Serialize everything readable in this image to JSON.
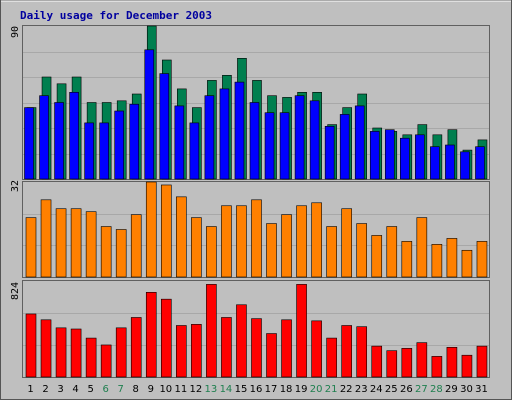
{
  "chart_data": [
    {
      "type": "bar",
      "title": "Daily usage for December 2003",
      "panel": "top",
      "y_max_label": "90",
      "ylim": [
        0,
        90
      ],
      "categories": [
        "1",
        "2",
        "3",
        "4",
        "5",
        "6",
        "7",
        "8",
        "9",
        "10",
        "11",
        "12",
        "13",
        "14",
        "15",
        "16",
        "17",
        "18",
        "19",
        "20",
        "21",
        "22",
        "23",
        "24",
        "25",
        "26",
        "27",
        "28",
        "29",
        "30",
        "31"
      ],
      "weekend_days": [
        "6",
        "7",
        "13",
        "14",
        "20",
        "21",
        "27",
        "28"
      ],
      "series": [
        {
          "color": "#007f4f",
          "values": [
            42,
            60,
            56,
            60,
            45,
            45,
            46,
            50,
            90,
            70,
            53,
            42,
            58,
            61,
            71,
            58,
            49,
            48,
            51,
            51,
            32,
            42,
            50,
            30,
            28,
            26,
            32,
            26,
            29,
            17,
            23
          ]
        },
        {
          "color": "#0000ff",
          "values": [
            42,
            49,
            45,
            51,
            33,
            33,
            40,
            44,
            76,
            62,
            43,
            33,
            49,
            53,
            57,
            45,
            39,
            39,
            49,
            46,
            31,
            38,
            43,
            28,
            29,
            24,
            26,
            19,
            20,
            16,
            19
          ]
        }
      ],
      "colors": {
        "grid": "#7f7f7f",
        "plot_bg": "#bfbfbf"
      }
    },
    {
      "type": "bar",
      "panel": "middle",
      "y_max_label": "32",
      "ylim": [
        0,
        32
      ],
      "categories": [
        "1",
        "2",
        "3",
        "4",
        "5",
        "6",
        "7",
        "8",
        "9",
        "10",
        "11",
        "12",
        "13",
        "14",
        "15",
        "16",
        "17",
        "18",
        "19",
        "20",
        "21",
        "22",
        "23",
        "24",
        "25",
        "26",
        "27",
        "28",
        "29",
        "30",
        "31"
      ],
      "series": [
        {
          "color": "#ff8000",
          "values": [
            20,
            26,
            23,
            23,
            22,
            17,
            16,
            21,
            32,
            31,
            27,
            20,
            17,
            24,
            24,
            26,
            18,
            21,
            24,
            25,
            17,
            23,
            18,
            14,
            17,
            12,
            20,
            11,
            13,
            9,
            12
          ]
        }
      ]
    },
    {
      "type": "bar",
      "panel": "bottom",
      "y_max_label": "824",
      "ylim": [
        0,
        824
      ],
      "categories": [
        "1",
        "2",
        "3",
        "4",
        "5",
        "6",
        "7",
        "8",
        "9",
        "10",
        "11",
        "12",
        "13",
        "14",
        "15",
        "16",
        "17",
        "18",
        "19",
        "20",
        "21",
        "22",
        "23",
        "24",
        "25",
        "26",
        "27",
        "28",
        "29",
        "30",
        "31"
      ],
      "series": [
        {
          "color": "#ff0000",
          "values": [
            541,
            491,
            422,
            412,
            334,
            275,
            422,
            511,
            727,
            668,
            442,
            452,
            795,
            511,
            620,
            501,
            373,
            491,
            795,
            482,
            334,
            442,
            432,
            265,
            226,
            246,
            295,
            177,
            255,
            187,
            265
          ]
        }
      ]
    }
  ]
}
